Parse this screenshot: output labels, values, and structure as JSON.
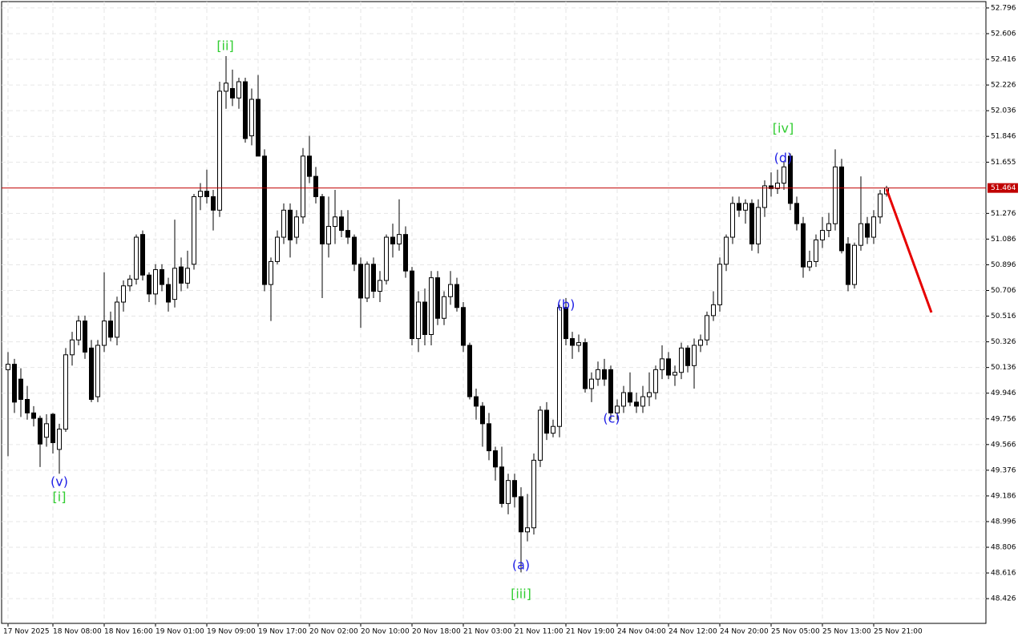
{
  "chart_data": {
    "type": "candlestick",
    "categories": [
      "17 Nov 2025",
      null,
      null,
      null,
      null,
      null,
      null,
      "18 Nov 08:00",
      null,
      null,
      null,
      null,
      null,
      null,
      null,
      "18 Nov 16:00",
      null,
      null,
      null,
      null,
      null,
      null,
      null,
      "19 Nov 01:00",
      null,
      null,
      null,
      null,
      null,
      null,
      null,
      "19 Nov 09:00",
      null,
      null,
      null,
      null,
      null,
      null,
      null,
      "19 Nov 17:00",
      null,
      null,
      null,
      null,
      null,
      null,
      null,
      "20 Nov 02:00",
      null,
      null,
      null,
      null,
      null,
      null,
      null,
      "20 Nov 10:00",
      null,
      null,
      null,
      null,
      null,
      null,
      null,
      "20 Nov 18:00",
      null,
      null,
      null,
      null,
      null,
      null,
      null,
      "21 Nov 03:00",
      null,
      null,
      null,
      null,
      null,
      null,
      null,
      "21 Nov 11:00",
      null,
      null,
      null,
      null,
      null,
      null,
      null,
      "21 Nov 19:00",
      null,
      null,
      null,
      null,
      null,
      null,
      null,
      "24 Nov 04:00",
      null,
      null,
      null,
      null,
      null,
      null,
      null,
      "24 Nov 12:00",
      null,
      null,
      null,
      null,
      null,
      null,
      null,
      "24 Nov 20:00",
      null,
      null,
      null,
      null,
      null,
      null,
      null,
      "25 Nov 05:00",
      null,
      null,
      null,
      null,
      null,
      null,
      null,
      "25 Nov 13:00",
      null,
      null,
      null,
      null,
      null,
      null,
      null,
      "25 Nov 21:00",
      null,
      null
    ],
    "open": [
      50.12,
      50.16,
      50.05,
      49.9,
      49.8,
      49.76,
      49.62,
      49.79,
      49.53,
      49.68,
      50.23,
      50.34,
      50.48,
      50.28,
      49.92,
      50.3,
      50.48,
      50.36,
      50.62,
      50.74,
      50.79,
      51.12,
      50.82,
      50.68,
      50.86,
      50.75,
      50.64,
      50.88,
      50.76,
      50.9,
      51.4,
      51.44,
      51.4,
      51.3,
      52.18,
      52.2,
      52.13,
      52.25,
      51.85,
      52.12,
      51.7,
      50.75,
      50.92,
      51.1,
      51.3,
      51.1,
      51.25,
      51.7,
      51.55,
      51.4,
      51.05,
      51.18,
      51.25,
      51.15,
      51.1,
      50.9,
      50.65,
      50.9,
      50.7,
      50.78,
      51.1,
      51.05,
      51.12,
      50.85,
      50.35,
      50.62,
      50.38,
      50.8,
      50.5,
      50.66,
      50.75,
      50.58,
      50.3,
      49.92,
      49.85,
      49.72,
      49.52,
      49.4,
      49.13,
      49.3,
      49.18,
      48.92,
      48.95,
      49.45,
      49.82,
      49.65,
      49.7,
      50.58,
      50.35,
      50.3,
      50.32,
      49.98,
      50.05,
      50.12,
      50.12,
      49.8,
      49.85,
      49.95,
      49.88,
      49.85,
      49.92,
      49.95,
      50.12,
      50.2,
      50.08,
      50.1,
      50.28,
      50.15,
      50.3,
      50.34,
      50.52,
      50.6,
      50.9,
      51.1,
      51.35,
      51.3,
      51.35,
      51.05,
      51.32,
      51.48,
      51.46,
      51.5,
      51.7,
      51.35,
      51.2,
      50.88,
      50.92,
      51.08,
      51.15,
      51.2,
      51.62,
      51.05,
      50.75,
      51.04,
      51.2,
      51.1,
      51.25,
      51.42
    ],
    "high": [
      50.25,
      50.2,
      50.13,
      50.0,
      49.85,
      49.78,
      49.79,
      49.8,
      49.72,
      50.28,
      50.4,
      50.52,
      50.52,
      50.34,
      50.34,
      50.84,
      50.55,
      50.66,
      50.78,
      50.82,
      51.12,
      51.15,
      50.84,
      50.9,
      50.9,
      50.8,
      51.23,
      50.95,
      51.0,
      51.42,
      51.5,
      51.6,
      51.45,
      52.25,
      52.44,
      52.34,
      52.28,
      52.28,
      52.2,
      52.3,
      51.75,
      50.95,
      51.15,
      51.35,
      51.35,
      51.3,
      51.76,
      51.85,
      51.62,
      51.42,
      51.4,
      51.45,
      51.3,
      51.3,
      51.12,
      50.95,
      50.92,
      50.95,
      50.85,
      51.12,
      51.2,
      51.38,
      51.18,
      50.88,
      50.7,
      50.72,
      50.85,
      50.85,
      50.7,
      50.85,
      50.8,
      50.62,
      50.32,
      49.98,
      49.88,
      49.8,
      49.55,
      49.55,
      49.35,
      49.35,
      49.25,
      49.2,
      49.5,
      49.85,
      49.88,
      49.75,
      50.6,
      50.65,
      50.4,
      50.38,
      50.35,
      50.1,
      50.18,
      50.2,
      50.15,
      49.9,
      50.0,
      50.1,
      49.95,
      50.0,
      50.1,
      50.15,
      50.3,
      50.25,
      50.15,
      50.32,
      50.3,
      50.35,
      50.38,
      50.55,
      50.7,
      50.95,
      51.12,
      51.4,
      51.4,
      51.38,
      51.38,
      51.38,
      51.52,
      51.58,
      51.6,
      51.66,
      51.72,
      51.4,
      51.25,
      51.0,
      51.12,
      51.25,
      51.28,
      51.75,
      51.68,
      51.1,
      51.06,
      51.55,
      51.25,
      51.3,
      51.45,
      51.48
    ],
    "low": [
      49.48,
      49.8,
      49.77,
      49.75,
      49.7,
      49.4,
      49.55,
      49.5,
      49.35,
      49.66,
      50.15,
      50.3,
      50.2,
      49.88,
      49.88,
      50.25,
      50.33,
      50.3,
      50.55,
      50.7,
      50.75,
      50.78,
      50.62,
      50.6,
      50.7,
      50.55,
      50.58,
      50.7,
      50.72,
      50.86,
      51.3,
      51.35,
      51.15,
      51.25,
      52.05,
      52.07,
      52.05,
      51.8,
      51.78,
      51.7,
      50.7,
      50.48,
      50.9,
      51.05,
      50.95,
      51.05,
      51.2,
      51.5,
      51.35,
      50.65,
      50.95,
      51.05,
      51.1,
      51.05,
      50.85,
      50.43,
      50.62,
      50.65,
      50.62,
      50.75,
      50.95,
      51.0,
      50.8,
      50.3,
      50.25,
      50.3,
      50.3,
      50.45,
      50.45,
      50.6,
      50.55,
      50.25,
      49.9,
      49.75,
      49.55,
      49.45,
      49.3,
      49.1,
      49.05,
      49.1,
      48.62,
      48.85,
      48.9,
      49.4,
      49.6,
      49.62,
      49.62,
      50.3,
      50.2,
      50.25,
      49.95,
      49.88,
      50.0,
      50.0,
      49.75,
      49.75,
      49.8,
      49.85,
      49.8,
      49.8,
      49.85,
      49.9,
      50.05,
      50.05,
      50.0,
      50.05,
      50.1,
      49.98,
      50.25,
      50.3,
      50.48,
      50.55,
      50.85,
      51.05,
      51.25,
      51.2,
      51.0,
      50.98,
      51.25,
      51.4,
      51.42,
      51.45,
      51.3,
      51.15,
      50.8,
      50.85,
      50.88,
      51.02,
      51.1,
      51.15,
      50.98,
      50.7,
      50.72,
      51.0,
      51.05,
      51.05,
      51.2,
      51.4
    ],
    "close": [
      50.16,
      49.88,
      49.9,
      49.8,
      49.76,
      49.57,
      49.72,
      49.58,
      49.68,
      50.23,
      50.34,
      50.48,
      50.25,
      49.9,
      50.3,
      50.48,
      50.36,
      50.62,
      50.74,
      50.79,
      51.1,
      50.82,
      50.68,
      50.86,
      50.75,
      50.62,
      50.87,
      50.76,
      50.87,
      51.4,
      51.44,
      51.4,
      51.3,
      52.18,
      52.24,
      52.13,
      52.25,
      51.83,
      52.12,
      51.7,
      50.75,
      50.92,
      51.1,
      51.3,
      51.08,
      51.25,
      51.7,
      51.55,
      51.4,
      51.05,
      51.18,
      51.25,
      51.15,
      51.1,
      50.9,
      50.65,
      50.9,
      50.7,
      50.78,
      51.1,
      51.05,
      51.12,
      50.85,
      50.35,
      50.62,
      50.38,
      50.8,
      50.5,
      50.66,
      50.75,
      50.58,
      50.3,
      49.92,
      49.85,
      49.72,
      49.52,
      49.4,
      49.13,
      49.3,
      49.18,
      48.92,
      48.95,
      49.45,
      49.82,
      49.65,
      49.7,
      50.58,
      50.35,
      50.3,
      50.32,
      49.98,
      50.05,
      50.12,
      50.05,
      49.8,
      49.85,
      49.95,
      49.88,
      49.85,
      49.92,
      49.95,
      50.12,
      50.2,
      50.08,
      50.1,
      50.28,
      50.15,
      50.3,
      50.34,
      50.52,
      50.6,
      50.9,
      51.1,
      51.35,
      51.3,
      51.35,
      51.05,
      51.32,
      51.48,
      51.46,
      51.5,
      51.62,
      51.35,
      51.2,
      50.88,
      50.92,
      51.08,
      51.15,
      51.2,
      51.62,
      51.0,
      50.75,
      51.04,
      51.2,
      51.1,
      51.25,
      51.42,
      51.464
    ],
    "ylim": [
      48.243,
      52.843
    ],
    "yticks": [
      52.796,
      52.606,
      52.416,
      52.226,
      52.036,
      51.846,
      51.655,
      51.276,
      51.086,
      50.896,
      50.706,
      50.516,
      50.326,
      50.136,
      49.946,
      49.756,
      49.566,
      49.376,
      49.186,
      48.996,
      48.806,
      48.616,
      48.426
    ],
    "grid": true,
    "bull_color": "#ffffff",
    "bear_color": "#000000",
    "last_price_color": "#c00000",
    "annotations": [
      "[ii]",
      "[iv]",
      "(d)",
      "(b)",
      "(c)",
      "(v)",
      "[i]",
      "(a)",
      "[iii]"
    ]
  }
}
